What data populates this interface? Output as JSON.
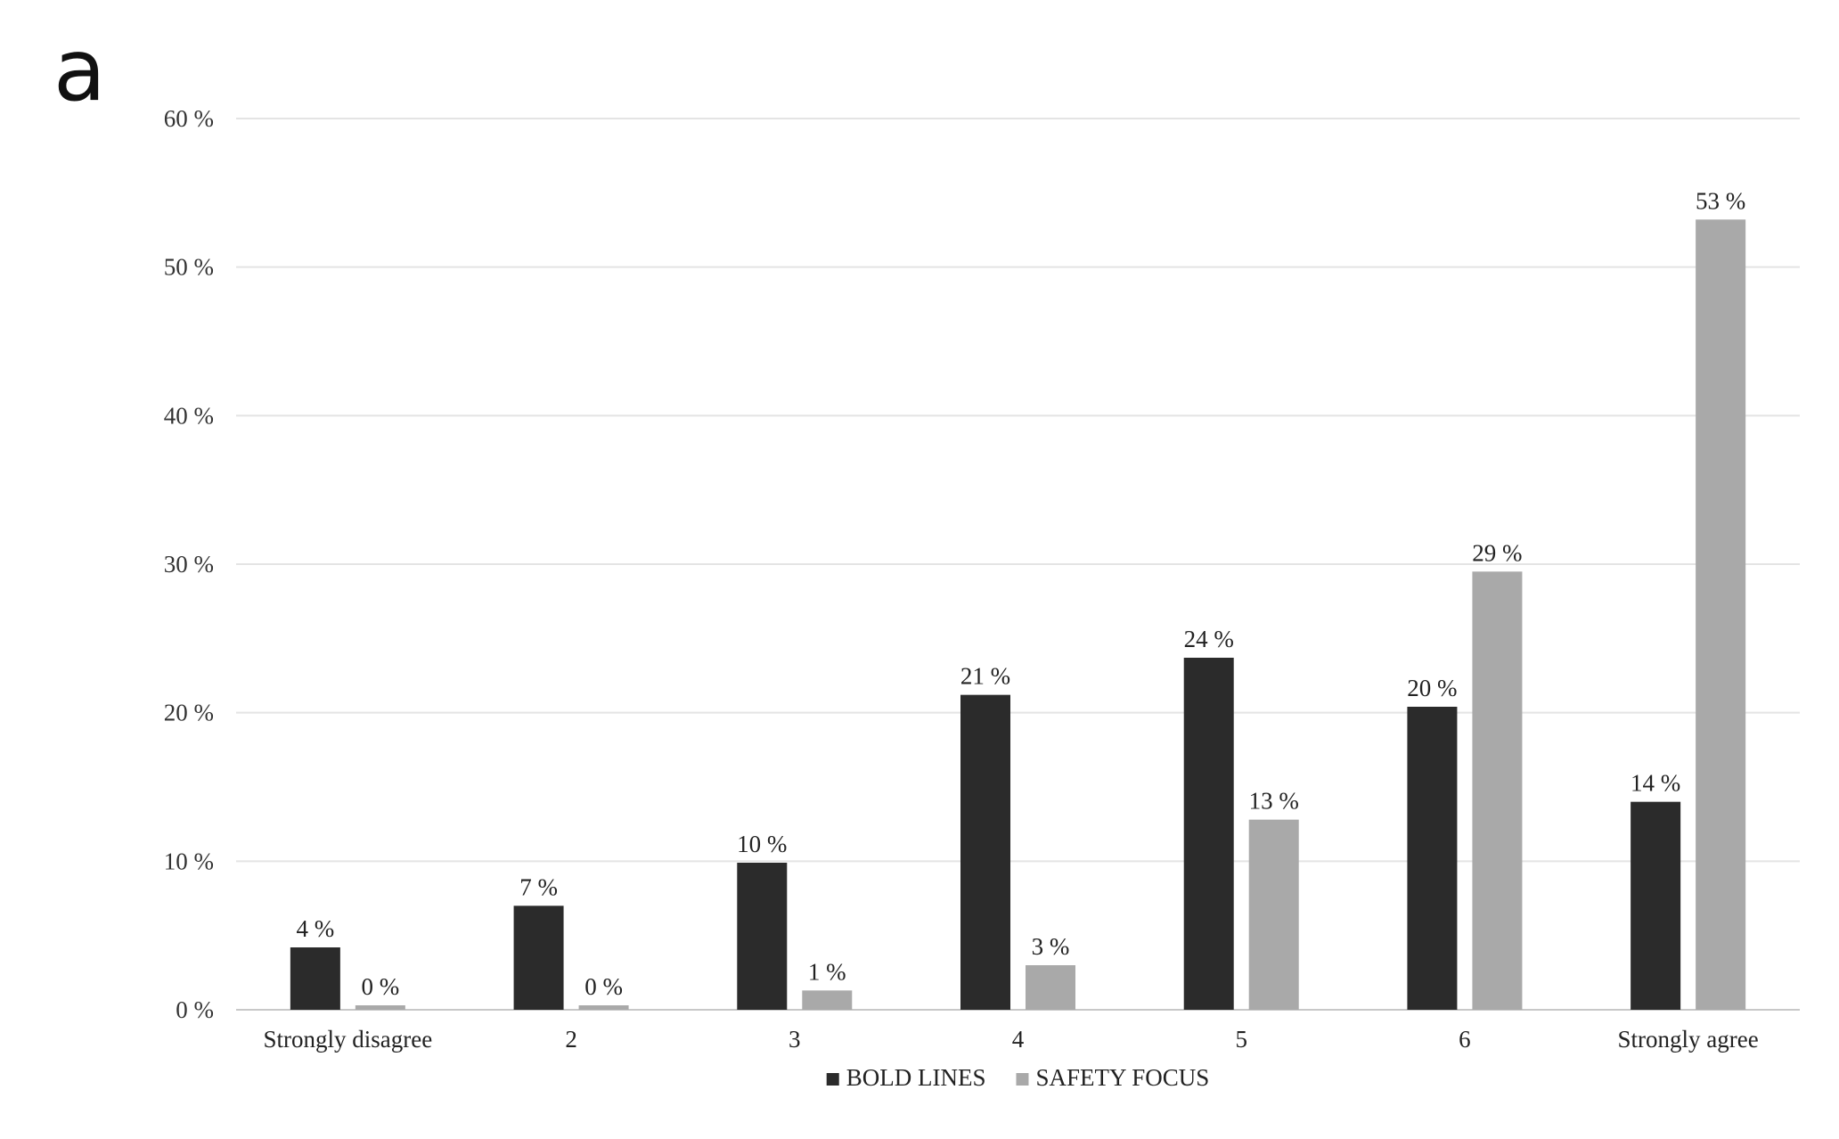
{
  "panel_label": "a",
  "chart_data": {
    "type": "bar",
    "categories": [
      "Strongly disagree",
      "2",
      "3",
      "4",
      "5",
      "6",
      "Strongly agree"
    ],
    "series": [
      {
        "name": "BOLD LINES",
        "values": [
          4.2,
          7.0,
          9.9,
          21.2,
          23.7,
          20.4,
          14.0
        ],
        "labels": [
          "4 %",
          "7 %",
          "10 %",
          "21 %",
          "24 %",
          "20 %",
          "14 %"
        ],
        "color": "#2b2b2b"
      },
      {
        "name": "SAFETY FOCUS",
        "values": [
          0.3,
          0.3,
          1.3,
          3.0,
          12.8,
          29.5,
          53.2
        ],
        "labels": [
          "0 %",
          "0 %",
          "1 %",
          "3 %",
          "13 %",
          "29 %",
          "53 %"
        ],
        "color": "#a9a9a9"
      }
    ],
    "y_ticks": [
      0,
      10,
      20,
      30,
      40,
      50,
      60
    ],
    "y_tick_labels": [
      "0 %",
      "10 %",
      "20 %",
      "30 %",
      "40 %",
      "50 %",
      "60 %"
    ],
    "ylim": [
      0,
      60
    ],
    "grid": true,
    "legend_position": "bottom-center",
    "title": "",
    "xlabel": "",
    "ylabel": ""
  }
}
